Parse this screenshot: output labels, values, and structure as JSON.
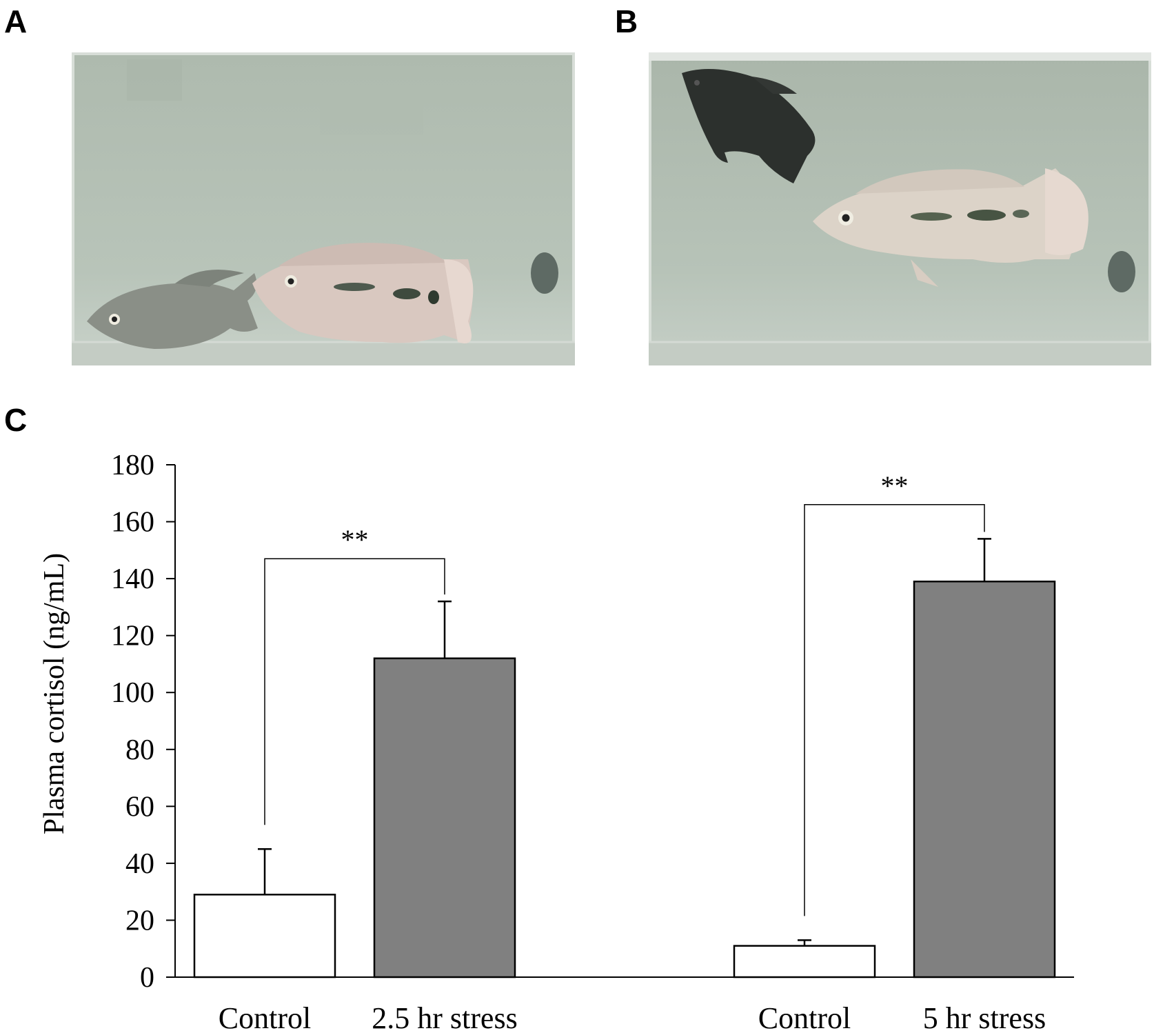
{
  "panels": {
    "a_label": "A",
    "b_label": "B",
    "c_label": "C"
  },
  "photos": {
    "tank_color": "#b6c2b6",
    "a": {
      "fish": [
        "small-pale-fish",
        "larger-pale-fish-with-dark-bars"
      ]
    },
    "b": {
      "fish": [
        "dark-fish",
        "large-pale-fish-with-dark-bars"
      ]
    }
  },
  "chart_data": {
    "type": "bar",
    "title": "",
    "xlabel": "",
    "ylabel": "Plasma cortisol (ng/mL)",
    "ylim": [
      0,
      180
    ],
    "yticks": [
      "0",
      "20",
      "40",
      "60",
      "80",
      "100",
      "120",
      "140",
      "160",
      "180"
    ],
    "categories": [
      "Control",
      "2.5 hr stress",
      "Control",
      "5 hr stress"
    ],
    "values": [
      29,
      112,
      11,
      139
    ],
    "error_upper": [
      16,
      20,
      2,
      15
    ],
    "bar_colors": [
      "#ffffff",
      "#808080",
      "#ffffff",
      "#808080"
    ],
    "significance": [
      {
        "from": 0,
        "to": 1,
        "label": "**",
        "y": 147
      },
      {
        "from": 2,
        "to": 3,
        "label": "**",
        "y": 166
      }
    ],
    "grid": false,
    "legend": "none"
  }
}
